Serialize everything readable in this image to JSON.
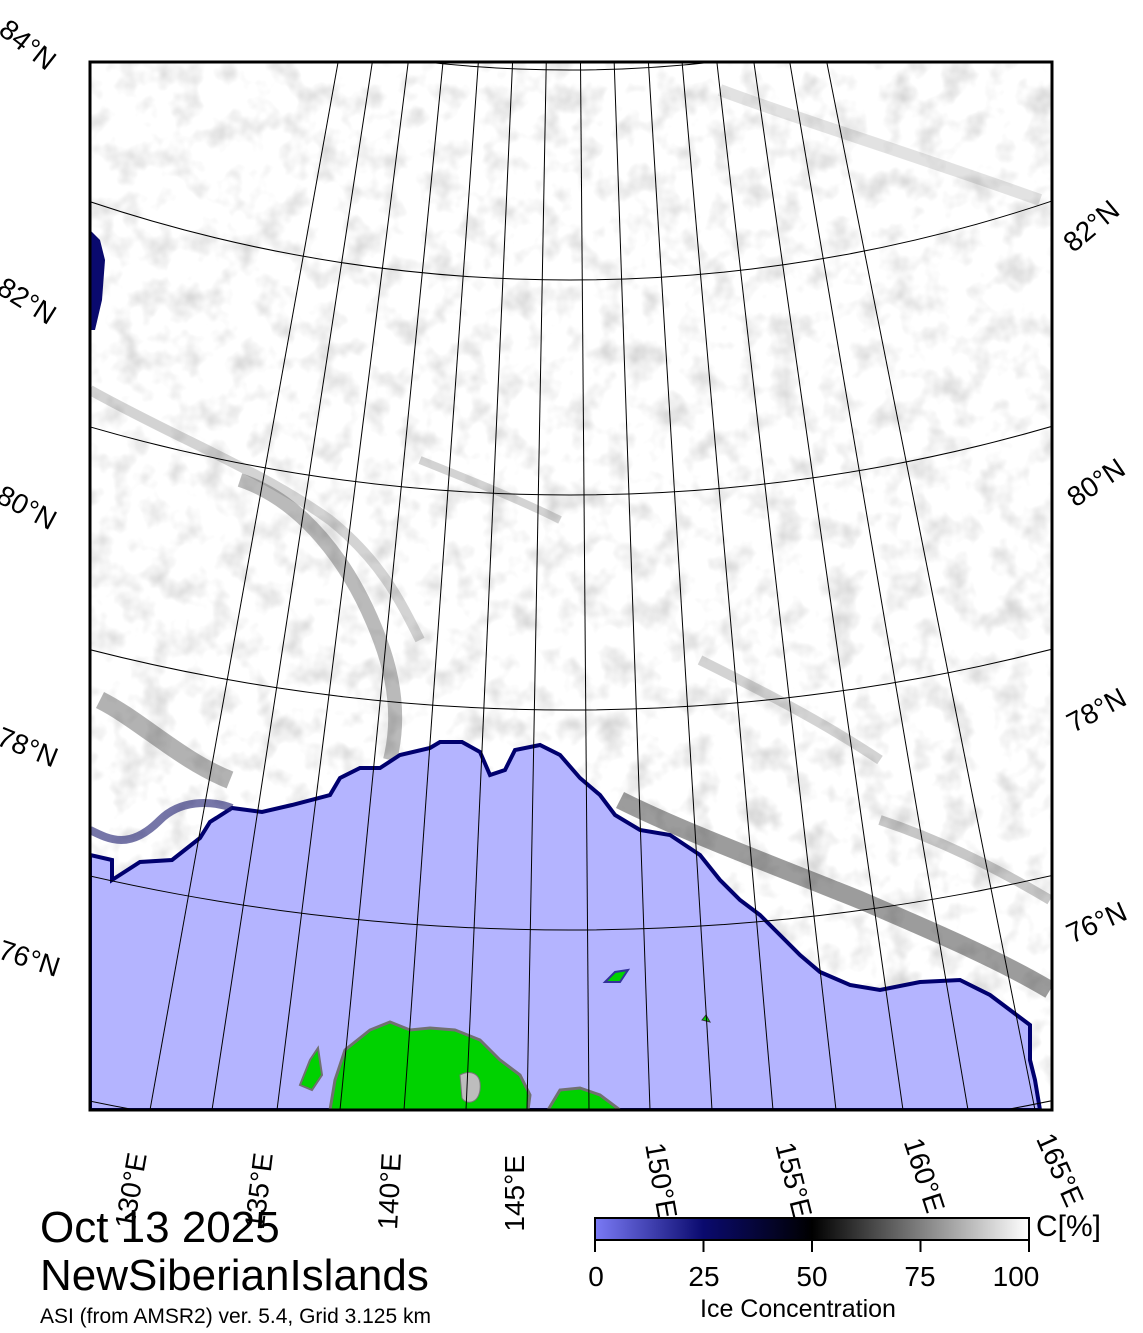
{
  "date": "Oct 13 2025",
  "region": "NewSiberianIslands",
  "product": "ASI (from AMSR2) ver. 5.4,  Grid 3.125 km",
  "colorbar": {
    "title": "Ice Concentration",
    "unit": "C[%]",
    "ticks": [
      "0",
      "25",
      "50",
      "75",
      "100"
    ],
    "colors": {
      "zero": "#6f6ff2",
      "low": "#0a0a6e",
      "mid": "#000000",
      "high": "#ffffff"
    }
  },
  "map": {
    "ocean_color": "#b4b4ff",
    "land_color": "#00d200",
    "ice_color": "#ffffff",
    "lon_labels": [
      "130°E",
      "135°E",
      "140°E",
      "145°E",
      "150°E",
      "155°E",
      "160°E",
      "165°E"
    ],
    "lat_labels_left": [
      "84°N",
      "82°N",
      "80°N",
      "78°N",
      "76°N"
    ],
    "lat_labels_right": [
      "82°N",
      "80°N",
      "78°N",
      "76°N"
    ]
  }
}
